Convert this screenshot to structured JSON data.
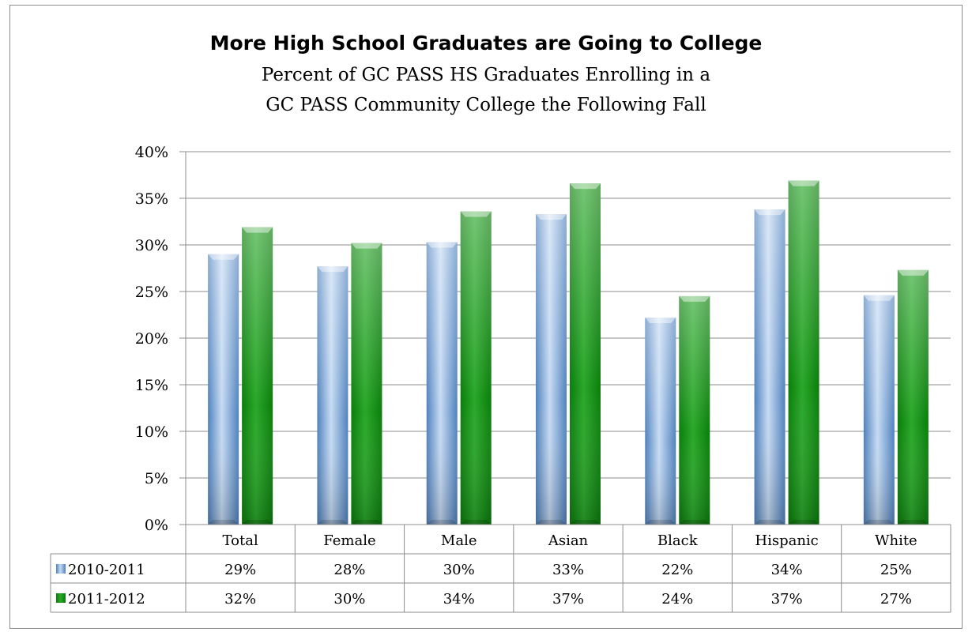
{
  "chart_data": {
    "type": "bar",
    "title": "More High School Graduates are Going to College",
    "subtitle": [
      "Percent of GC PASS HS Graduates Enrolling in a",
      "GC PASS Community College the Following Fall"
    ],
    "categories": [
      "Total",
      "Female",
      "Male",
      "Asian",
      "Black",
      "Hispanic",
      "White"
    ],
    "series": [
      {
        "name": "2010-2011",
        "values": [
          29,
          27.7,
          30.3,
          33.3,
          22.2,
          33.8,
          24.6
        ],
        "labels": [
          "29%",
          "28%",
          "30%",
          "33%",
          "22%",
          "34%",
          "25%"
        ],
        "color": "#4f81bd",
        "color_light": "#c6dbf3"
      },
      {
        "name": "2011-2012",
        "values": [
          31.9,
          30.2,
          33.6,
          36.6,
          24.5,
          36.9,
          27.3
        ],
        "labels": [
          "32%",
          "30%",
          "34%",
          "37%",
          "24%",
          "37%",
          "27%"
        ],
        "color": "#0a7d0a",
        "color_light": "#2aa82a"
      }
    ],
    "ylim": [
      0,
      40
    ],
    "yticks": [
      0,
      5,
      10,
      15,
      20,
      25,
      30,
      35,
      40
    ],
    "ytick_labels": [
      "0%",
      "5%",
      "10%",
      "15%",
      "20%",
      "25%",
      "30%",
      "35%",
      "40%"
    ],
    "grid": true,
    "legend": "data-table",
    "data_table": true,
    "xlabel": "",
    "ylabel": ""
  }
}
